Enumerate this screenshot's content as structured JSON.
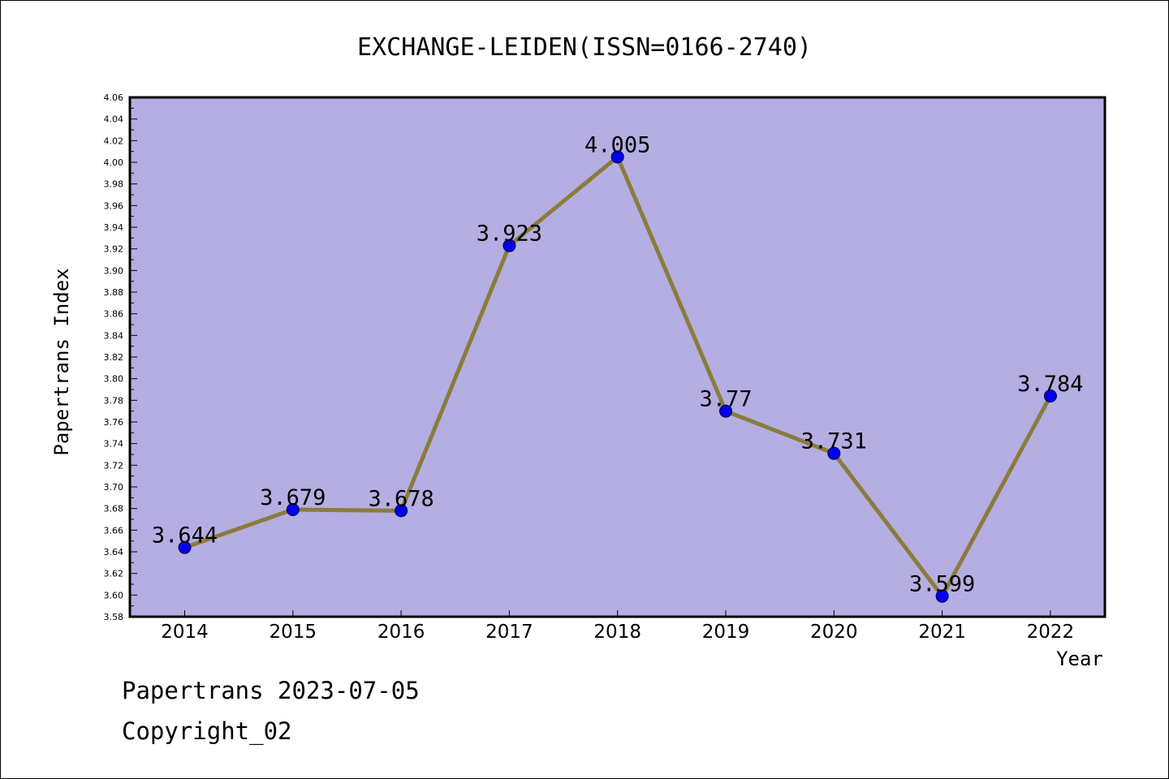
{
  "chart_data": {
    "type": "line",
    "title": "EXCHANGE-LEIDEN(ISSN=0166-2740)",
    "xlabel": "Year",
    "ylabel": "Papertrans Index",
    "categories": [
      "2014",
      "2015",
      "2016",
      "2017",
      "2018",
      "2019",
      "2020",
      "2021",
      "2022"
    ],
    "values": [
      3.644,
      3.679,
      3.678,
      3.923,
      4.005,
      3.77,
      3.731,
      3.599,
      3.784
    ],
    "data_labels": [
      "3.644",
      "3.679",
      "3.678",
      "3.923",
      "4.005",
      "3.77",
      "3.731",
      "3.599",
      "3.784"
    ],
    "ylim": [
      3.58,
      4.06
    ],
    "yticks": [
      "3.58",
      "3.60",
      "3.62",
      "3.64",
      "3.66",
      "3.68",
      "3.70",
      "3.72",
      "3.74",
      "3.76",
      "3.78",
      "3.80",
      "3.82",
      "3.84",
      "3.86",
      "3.88",
      "3.90",
      "3.92",
      "3.94",
      "3.96",
      "3.98",
      "4.00",
      "4.02",
      "4.04",
      "4.06"
    ],
    "grid": false,
    "colors": {
      "plot_background": "#b4aee2",
      "line": "#8c7b3c",
      "marker": "#0000ee"
    }
  },
  "footer": {
    "line1": "Papertrans 2023-07-05",
    "line2": "Copyright_02"
  }
}
